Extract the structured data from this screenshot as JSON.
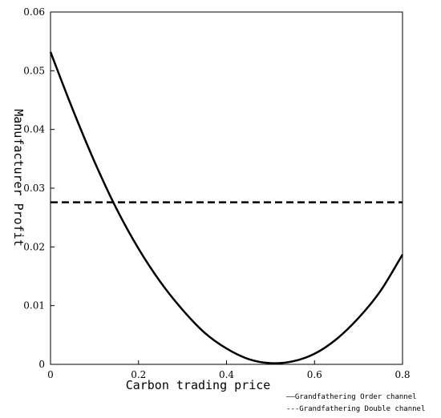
{
  "chart_data": {
    "type": "line",
    "xlabel": "Carbon trading price",
    "ylabel": "Manufacturer Profit",
    "xlim": [
      0,
      0.8
    ],
    "ylim": [
      0,
      0.06
    ],
    "x_ticks": [
      "0",
      "0.2",
      "0.4",
      "0.6",
      "0.8"
    ],
    "y_ticks": [
      "0",
      "0.01",
      "0.02",
      "0.03",
      "0.04",
      "0.05",
      "0.06"
    ],
    "grid": false,
    "legend_position": "bottom-right",
    "series": [
      {
        "name": "Grandfathering Order channel",
        "style": "solid",
        "x": [
          0,
          0.05,
          0.1,
          0.15,
          0.2,
          0.25,
          0.3,
          0.35,
          0.4,
          0.45,
          0.5,
          0.55,
          0.6,
          0.65,
          0.7,
          0.75,
          0.8
        ],
        "y": [
          0.0532,
          0.0435,
          0.0345,
          0.0265,
          0.0197,
          0.014,
          0.0093,
          0.0054,
          0.0027,
          0.0009,
          0.0002,
          0.0005,
          0.0018,
          0.0043,
          0.0079,
          0.0125,
          0.0187
        ]
      },
      {
        "name": "Grandfathering Double channel",
        "style": "dashed",
        "x": [
          0,
          0.8
        ],
        "y": [
          0.0276,
          0.0276
        ]
      }
    ],
    "legend_labels": [
      "——Grandfathering Order channel",
      "---Grandfathering Double channel"
    ],
    "colors": {
      "line": "#000000",
      "axis": "#000000",
      "background": "#ffffff"
    }
  }
}
